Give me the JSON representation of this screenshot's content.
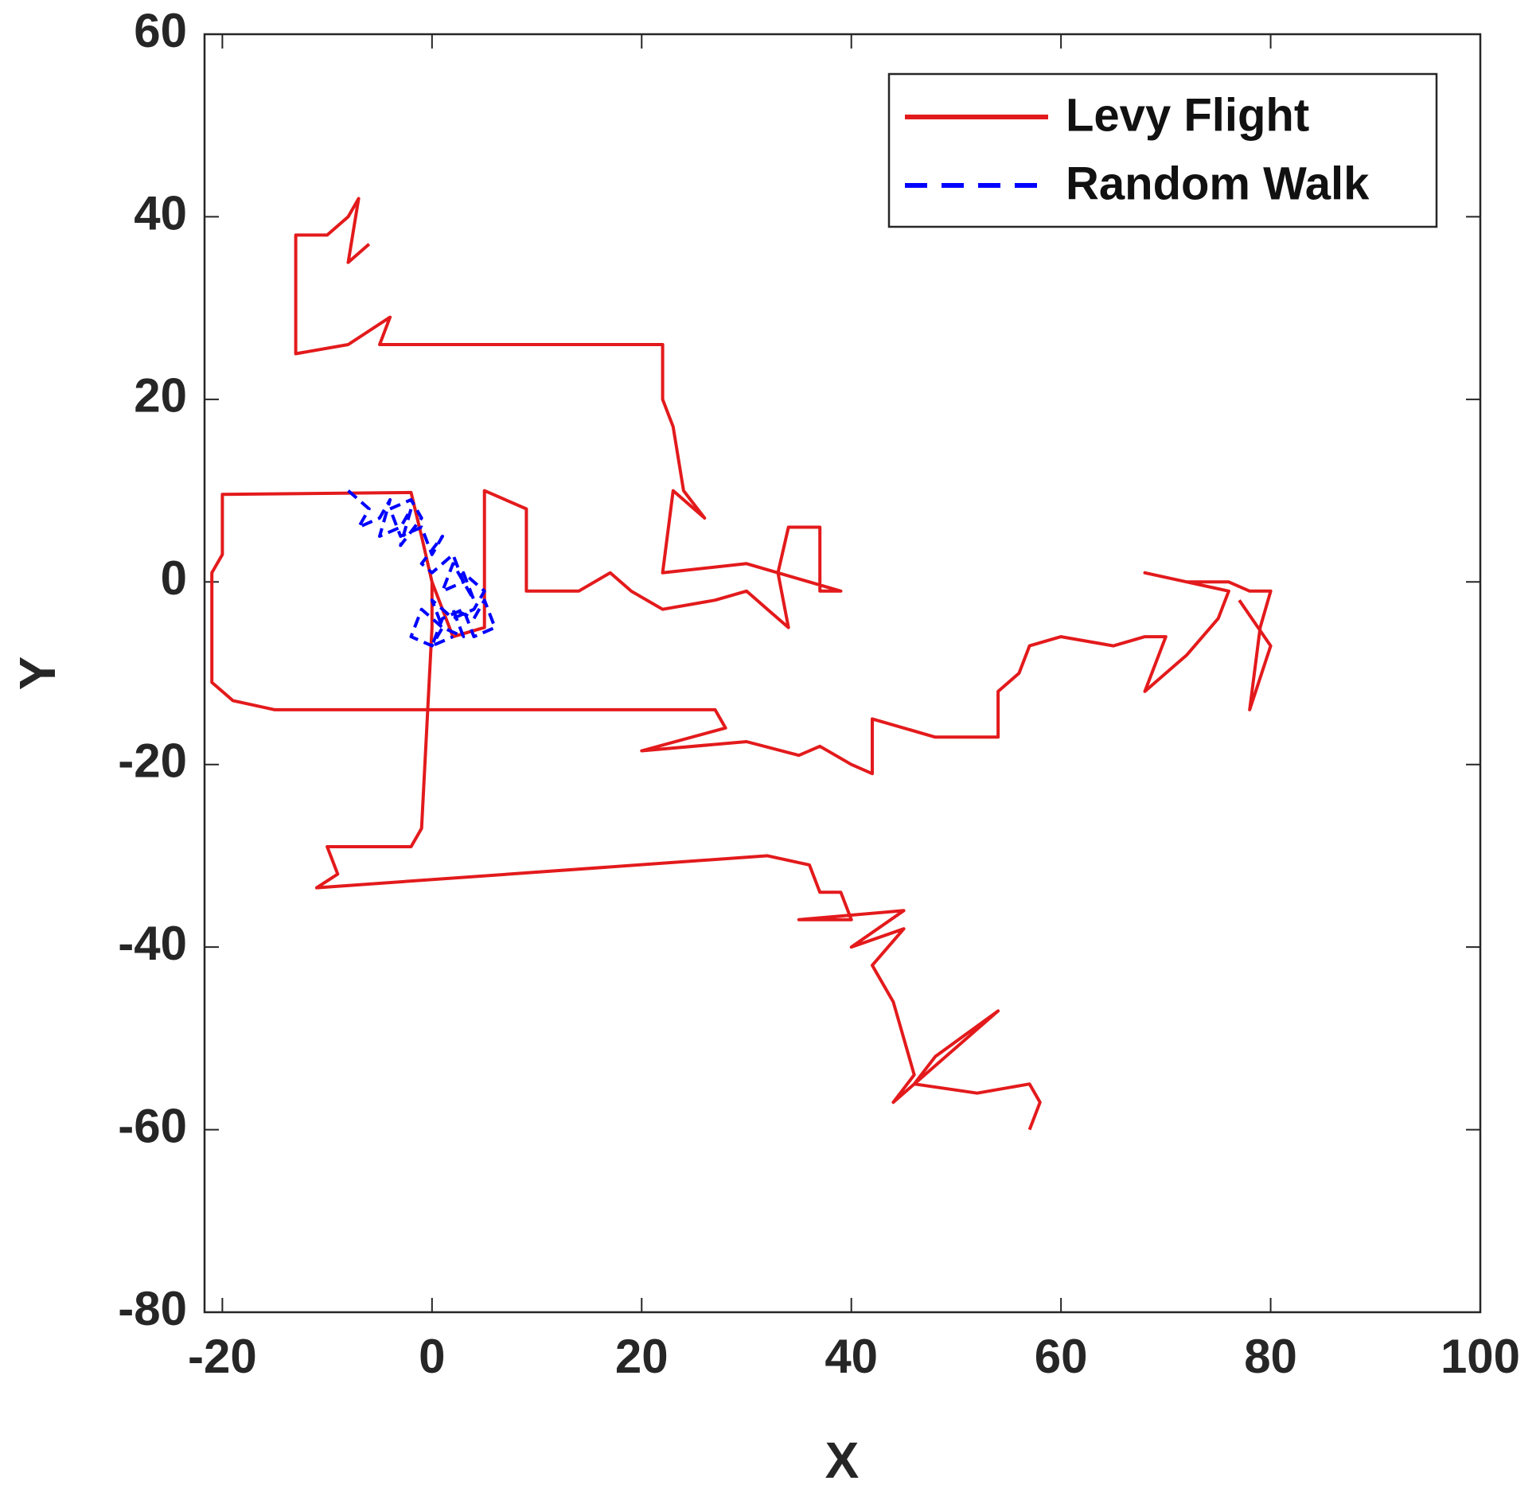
{
  "chart_data": {
    "type": "line",
    "xlabel": "X",
    "ylabel": "Y",
    "xlim": [
      -21.7,
      100
    ],
    "xticks": [
      -20,
      0,
      20,
      40,
      60,
      80,
      100
    ],
    "ylim": [
      -80,
      60
    ],
    "yticks": [
      -80,
      -60,
      -40,
      -20,
      0,
      20,
      40,
      60
    ],
    "legend": "upper right",
    "series": [
      {
        "name": "Levy Flight",
        "color": "#e31a1c",
        "dash": "solid",
        "x": [
          57,
          58,
          57,
          52,
          46,
          48,
          54,
          44,
          46,
          45,
          44,
          42,
          45,
          40,
          45,
          35,
          40,
          39,
          37,
          36,
          32,
          -11,
          -9,
          -10,
          -2,
          -1,
          0,
          0,
          -1,
          -2,
          -20,
          -20,
          -21,
          -21,
          -19,
          -15,
          9,
          27,
          28,
          20,
          30,
          35,
          37,
          40,
          42,
          42,
          48,
          54,
          54,
          56,
          57,
          60,
          65,
          68,
          70,
          68,
          71,
          72,
          75,
          76,
          72,
          68,
          72,
          76,
          78,
          80,
          79,
          78,
          80,
          77,
          null,
          0,
          2,
          5,
          5,
          9,
          9,
          12,
          14,
          17,
          19,
          22,
          27,
          30,
          32,
          34,
          33,
          34,
          37,
          37,
          39,
          36,
          30,
          22,
          23,
          26,
          24,
          23,
          22,
          22,
          -5,
          -4,
          -8,
          -13,
          -13,
          -10,
          -8,
          -7,
          -8,
          -6
        ],
        "values": [
          -60,
          -57,
          -55,
          -56,
          -55,
          -52,
          -47,
          -57,
          -54,
          -50,
          -46,
          -42,
          -38,
          -40,
          -36,
          -37,
          -37,
          -34,
          -34,
          -31,
          -30,
          -33.5,
          -32,
          -29,
          -29,
          -27,
          -5,
          0,
          5,
          9.8,
          9.6,
          3,
          1,
          -11,
          -13,
          -14,
          -14,
          -14,
          -16,
          -18.5,
          -17.5,
          -19,
          -18,
          -20,
          -21,
          -15,
          -17,
          -17,
          -12,
          -10,
          -7,
          -6,
          -7,
          -6,
          -6,
          -12,
          -9,
          -8,
          -4,
          -1,
          0,
          1,
          0,
          0,
          -1,
          -1,
          -5,
          -14,
          -7,
          -2,
          null,
          0,
          -6,
          -5,
          10,
          8,
          -1,
          -1,
          -1,
          1,
          -1,
          -3,
          -2,
          -1,
          -3,
          -5,
          1,
          6,
          6,
          -1,
          -1,
          0,
          2,
          1,
          10,
          7,
          10,
          17,
          20,
          26,
          26,
          29,
          26,
          25,
          38,
          38,
          40,
          42,
          35,
          37
        ]
      },
      {
        "name": "Random Walk",
        "color": "#0000ff",
        "dash": "dashed",
        "x": [
          -8,
          -7,
          -6,
          -7,
          -5,
          -4,
          -5,
          -3,
          -2,
          -3,
          -1,
          -2,
          -4,
          -3,
          -1,
          0,
          1,
          -1,
          0,
          2,
          3,
          1,
          2,
          4,
          3,
          5,
          4,
          2,
          0,
          1,
          -1,
          -2,
          0,
          1,
          3,
          2,
          4,
          5,
          6,
          4,
          3,
          1,
          0,
          2
        ],
        "values": [
          10,
          9,
          8,
          6,
          7,
          9,
          5,
          6,
          8,
          4,
          7,
          9,
          8,
          5,
          6,
          3,
          5,
          2,
          1,
          3,
          0,
          -1,
          2,
          -2,
          1,
          -1,
          -3,
          -4,
          -2,
          -5,
          -3,
          -6,
          -7,
          -5,
          -6,
          -3,
          -4,
          -2,
          -5,
          -6,
          -3,
          -4,
          -7,
          -6
        ]
      }
    ]
  }
}
